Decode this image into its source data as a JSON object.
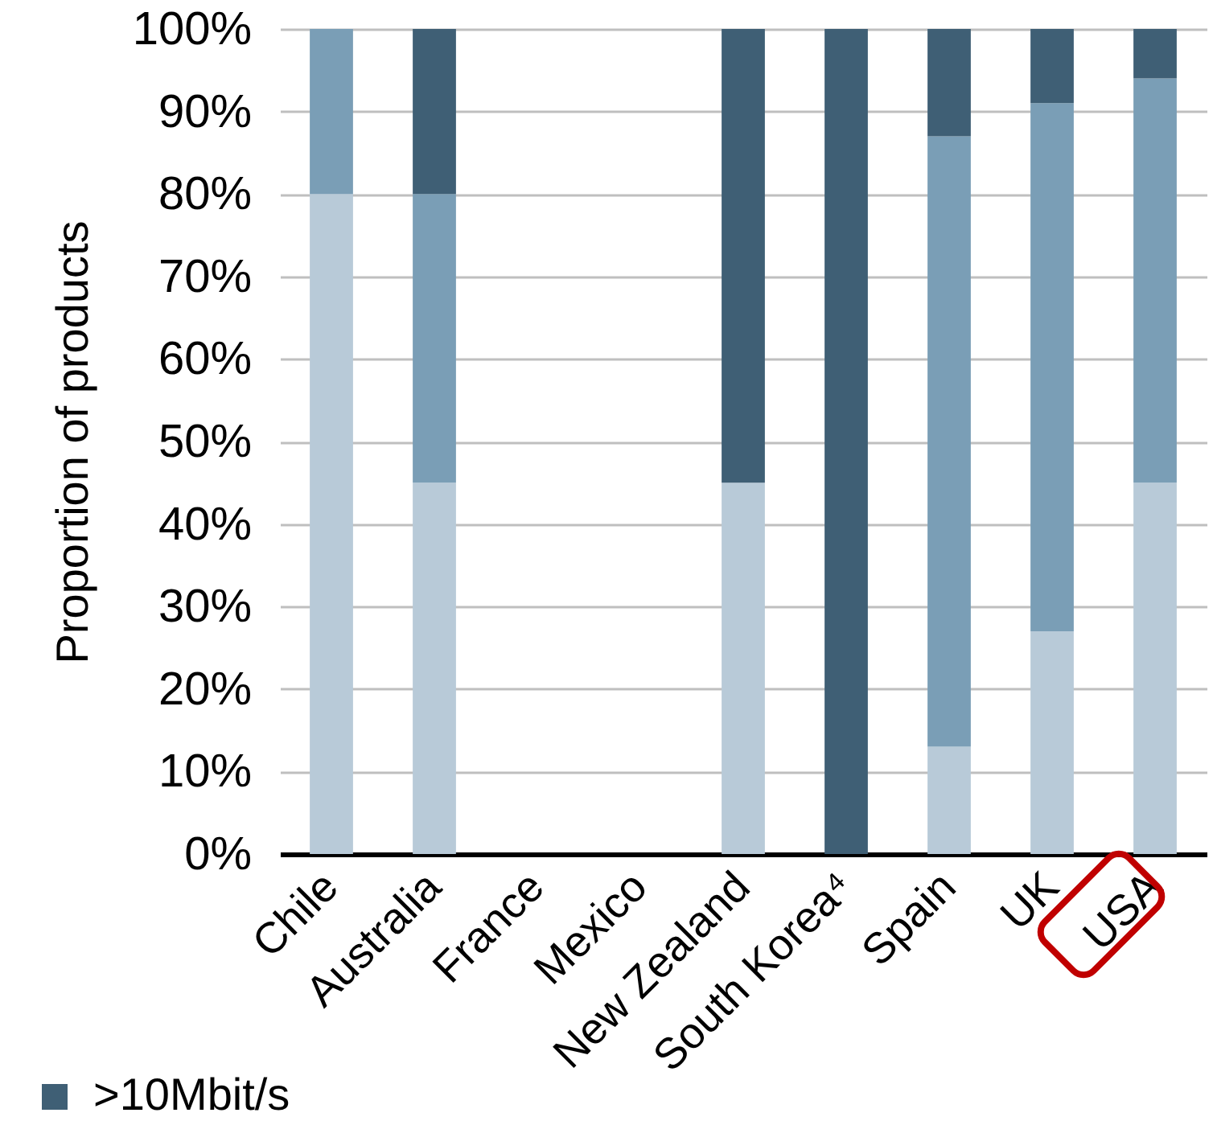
{
  "chart_data": {
    "type": "bar",
    "stacked": true,
    "ylabel": "Proportion of products",
    "categories": [
      "Chile",
      "Australia",
      "France",
      "Mexico",
      "New Zealand",
      "South Korea⁴",
      "Spain",
      "UK",
      "USA"
    ],
    "series": [
      {
        "color": "#b8cad8",
        "values": [
          80,
          45,
          null,
          null,
          45,
          null,
          13,
          27,
          45
        ]
      },
      {
        "color": "#7a9eb6",
        "values": [
          20,
          35,
          null,
          null,
          null,
          null,
          74,
          64,
          49
        ]
      },
      {
        "name": ">10Mbit/s",
        "color": "#3f5f75",
        "values": [
          null,
          20,
          null,
          null,
          55,
          100,
          13,
          9,
          6
        ]
      }
    ],
    "ylim": [
      0,
      100
    ],
    "yticks": [
      {
        "value": 0,
        "label": "0%"
      },
      {
        "value": 10,
        "label": "10%"
      },
      {
        "value": 20,
        "label": "20%"
      },
      {
        "value": 30,
        "label": "30%"
      },
      {
        "value": 40,
        "label": "40%"
      },
      {
        "value": 50,
        "label": "50%"
      },
      {
        "value": 60,
        "label": "60%"
      },
      {
        "value": 70,
        "label": "70%"
      },
      {
        "value": 80,
        "label": "80%"
      },
      {
        "value": 90,
        "label": "90%"
      },
      {
        "value": 100,
        "label": "100%"
      }
    ],
    "grid": "y",
    "legend": "bottom"
  }
}
